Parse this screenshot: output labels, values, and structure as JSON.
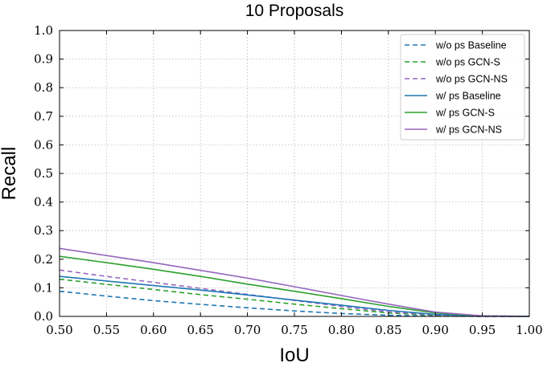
{
  "chart_data": {
    "type": "line",
    "title": "10 Proposals",
    "xlabel": "IoU",
    "ylabel": "Recall",
    "xlim": [
      0.5,
      1.0
    ],
    "ylim": [
      0.0,
      1.0
    ],
    "xticks": [
      "0.50",
      "0.55",
      "0.60",
      "0.65",
      "0.70",
      "0.75",
      "0.80",
      "0.85",
      "0.90",
      "0.95",
      "1.00"
    ],
    "yticks": [
      "0.0",
      "0.1",
      "0.2",
      "0.3",
      "0.4",
      "0.5",
      "0.6",
      "0.7",
      "0.8",
      "0.9",
      "1.0"
    ],
    "grid": true,
    "legend_position": "top-right",
    "x": [
      0.5,
      0.55,
      0.6,
      0.65,
      0.7,
      0.75,
      0.8,
      0.85,
      0.9,
      0.95,
      1.0
    ],
    "series": [
      {
        "name": "w/o ps Baseline",
        "color": "#1f77b4",
        "dash": "dashed",
        "values": [
          0.088,
          0.071,
          0.055,
          0.042,
          0.03,
          0.019,
          0.01,
          0.004,
          0.001,
          0.0,
          0.0
        ]
      },
      {
        "name": "w/o ps GCN-S",
        "color": "#2ca02c",
        "dash": "dashed",
        "values": [
          0.13,
          0.112,
          0.094,
          0.076,
          0.06,
          0.043,
          0.027,
          0.012,
          0.004,
          0.0,
          0.0
        ]
      },
      {
        "name": "w/o ps GCN-NS",
        "color": "#9467bd",
        "dash": "dashed",
        "values": [
          0.162,
          0.14,
          0.119,
          0.098,
          0.077,
          0.056,
          0.035,
          0.016,
          0.005,
          0.0,
          0.0
        ]
      },
      {
        "name": "w/ ps Baseline",
        "color": "#1f77b4",
        "dash": "solid",
        "values": [
          0.14,
          0.124,
          0.108,
          0.092,
          0.075,
          0.057,
          0.039,
          0.021,
          0.007,
          0.001,
          0.0
        ]
      },
      {
        "name": "w/ ps GCN-S",
        "color": "#2ca02c",
        "dash": "solid",
        "values": [
          0.21,
          0.188,
          0.165,
          0.14,
          0.113,
          0.088,
          0.062,
          0.035,
          0.012,
          0.001,
          0.0
        ]
      },
      {
        "name": "w/ ps GCN-NS",
        "color": "#9467bd",
        "dash": "solid",
        "values": [
          0.238,
          0.213,
          0.188,
          0.161,
          0.134,
          0.104,
          0.073,
          0.043,
          0.015,
          0.002,
          0.0
        ]
      }
    ]
  }
}
